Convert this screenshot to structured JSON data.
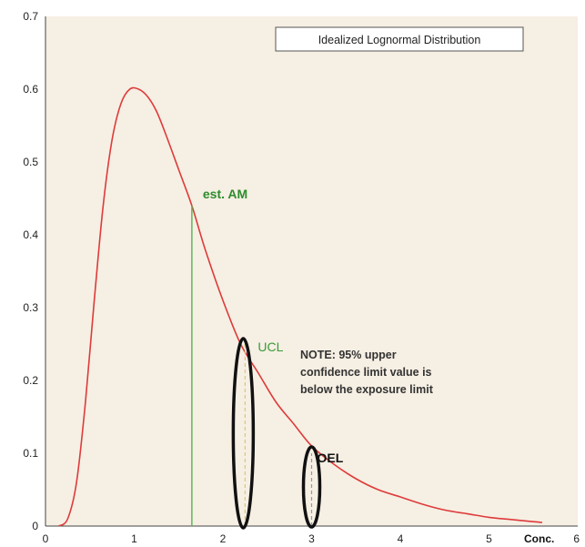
{
  "chart_data": {
    "type": "line",
    "title": "Idealized Lognormal Distribution",
    "xlabel": "Conc.",
    "ylabel": "",
    "xlim": [
      0,
      6
    ],
    "ylim": [
      0,
      0.7
    ],
    "x_ticks": [
      "0",
      "1",
      "2",
      "3",
      "4",
      "5",
      "6"
    ],
    "y_ticks": [
      "0",
      "0.1",
      "0.2",
      "0.3",
      "0.4",
      "0.5",
      "0.6",
      "0.7"
    ],
    "grid": false,
    "series": [
      {
        "x": [
          0.15,
          0.25,
          0.35,
          0.45,
          0.55,
          0.65,
          0.75,
          0.85,
          0.95,
          1.05,
          1.15,
          1.25,
          1.35,
          1.5,
          1.65,
          1.8,
          2.0,
          2.2,
          2.4,
          2.6,
          2.8,
          3.0,
          3.25,
          3.5,
          3.75,
          4.0,
          4.25,
          4.5,
          4.75,
          5.0,
          5.25,
          5.5,
          5.6
        ],
        "y": [
          0.0,
          0.01,
          0.06,
          0.17,
          0.31,
          0.44,
          0.53,
          0.58,
          0.6,
          0.6,
          0.59,
          0.57,
          0.54,
          0.49,
          0.44,
          0.38,
          0.31,
          0.25,
          0.21,
          0.17,
          0.14,
          0.11,
          0.085,
          0.065,
          0.05,
          0.04,
          0.03,
          0.022,
          0.017,
          0.012,
          0.009,
          0.006,
          0.005
        ],
        "color": "#dd3b3b"
      }
    ],
    "annotations": {
      "est_am": {
        "label": "est. AM",
        "x": 1.65,
        "y": 0.44,
        "color": "#2e8b2e"
      },
      "ucl": {
        "label": "UCL",
        "x": 2.25,
        "y": 0.25,
        "color": "#3a9a3a"
      },
      "oel": {
        "label": "OEL",
        "x": 3.0,
        "y": 0.1,
        "color": "#111111"
      },
      "note": [
        "NOTE: 95% upper",
        "confidence limit value is",
        "below the exposure limit"
      ]
    },
    "colors": {
      "background": "#f6efe3",
      "curve": "#dd3b3b",
      "green": "#2e8b2e"
    }
  }
}
